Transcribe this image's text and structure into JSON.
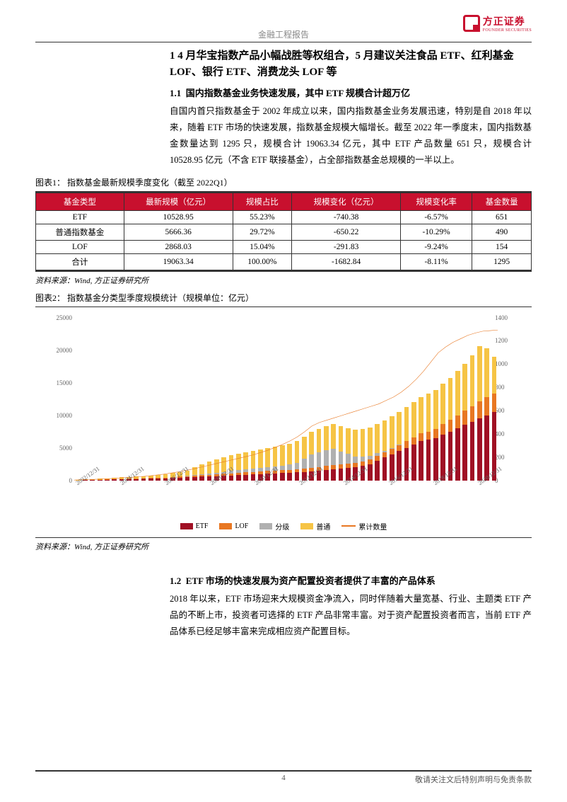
{
  "header": {
    "doc_type": "金融工程报告"
  },
  "logo": {
    "cn": "方正证券",
    "en": "FOUNDER SECURITIES"
  },
  "section1": {
    "num": "1",
    "title": "4 月华宝指数产品小幅战胜等权组合，5 月建议关注食品 ETF、红利基金 LOF、银行 ETF、消费龙头 LOF 等",
    "sub_num": "1.1",
    "sub_title": "国内指数基金业务快速发展，其中 ETF 规模合计超万亿",
    "para1": "自国内首只指数基金于 2002 年成立以来，国内指数基金业务发展迅速，特别是自 2018 年以来，随着 ETF 市场的快速发展，指数基金规模大幅增长。截至 2022 年一季度末，国内指数基金数量达到 1295 只，规模合计 19063.34 亿元，其中 ETF 产品数量 651 只，规模合计 10528.95 亿元（不含 ETF 联接基金），占全部指数基金总规模的一半以上。"
  },
  "table1": {
    "caption": "图表1：  指数基金最新规模季度变化（截至 2022Q1）",
    "columns": [
      "基金类型",
      "最新规模（亿元）",
      "规模占比",
      "规模变化（亿元）",
      "规模变化率",
      "基金数量"
    ],
    "rows": [
      [
        "ETF",
        "10528.95",
        "55.23%",
        "-740.38",
        "-6.57%",
        "651"
      ],
      [
        "普通指数基金",
        "5666.36",
        "29.72%",
        "-650.22",
        "-10.29%",
        "490"
      ],
      [
        "LOF",
        "2868.03",
        "15.04%",
        "-291.83",
        "-9.24%",
        "154"
      ],
      [
        "合计",
        "19063.34",
        "100.00%",
        "-1682.84",
        "-8.11%",
        "1295"
      ]
    ],
    "source": "资料来源：Wind, 方正证券研究所"
  },
  "chart2": {
    "caption": "图表2：  指数基金分类型季度规模统计（规模单位：亿元）",
    "type": "stacked-bar-with-line",
    "y_left": {
      "min": 0,
      "max": 25000,
      "step": 5000,
      "ticks": [
        0,
        5000,
        10000,
        15000,
        20000,
        25000
      ]
    },
    "y_right": {
      "min": 0,
      "max": 1400,
      "step": 200,
      "ticks": [
        0,
        200,
        400,
        600,
        800,
        1000,
        1200,
        1400
      ]
    },
    "x_labels": [
      "2002/12/31",
      "2004/12/31",
      "2006/12/31",
      "2008/12/31",
      "2010/12/31",
      "2012/12/31",
      "2014/12/31",
      "2016/12/31",
      "2018/12/31",
      "2020/12/31"
    ],
    "colors": {
      "etf": "#a01024",
      "lof": "#e87722",
      "fenji": "#b0b0b0",
      "putong": "#f6c445",
      "line": "#e87722",
      "grid": "#ffffff",
      "axis": "#808080"
    },
    "legend": [
      {
        "label": "ETF",
        "color": "#a01024",
        "type": "box"
      },
      {
        "label": "LOF",
        "color": "#e87722",
        "type": "box"
      },
      {
        "label": "分级",
        "color": "#b0b0b0",
        "type": "box"
      },
      {
        "label": "普通",
        "color": "#f6c445",
        "type": "box"
      },
      {
        "label": "累计数量",
        "color": "#e87722",
        "type": "line"
      }
    ],
    "bars": [
      {
        "etf": 0,
        "lof": 0,
        "fenji": 0,
        "putong": 50
      },
      {
        "etf": 50,
        "lof": 0,
        "fenji": 0,
        "putong": 80
      },
      {
        "etf": 80,
        "lof": 0,
        "fenji": 0,
        "putong": 100
      },
      {
        "etf": 100,
        "lof": 0,
        "fenji": 0,
        "putong": 150
      },
      {
        "etf": 100,
        "lof": 20,
        "fenji": 0,
        "putong": 180
      },
      {
        "etf": 120,
        "lof": 30,
        "fenji": 0,
        "putong": 200
      },
      {
        "etf": 150,
        "lof": 40,
        "fenji": 0,
        "putong": 250
      },
      {
        "etf": 180,
        "lof": 50,
        "fenji": 0,
        "putong": 280
      },
      {
        "etf": 200,
        "lof": 60,
        "fenji": 0,
        "putong": 300
      },
      {
        "etf": 220,
        "lof": 70,
        "fenji": 0,
        "putong": 320
      },
      {
        "etf": 250,
        "lof": 80,
        "fenji": 0,
        "putong": 350
      },
      {
        "etf": 280,
        "lof": 90,
        "fenji": 0,
        "putong": 400
      },
      {
        "etf": 300,
        "lof": 100,
        "fenji": 20,
        "putong": 500
      },
      {
        "etf": 350,
        "lof": 120,
        "fenji": 30,
        "putong": 600
      },
      {
        "etf": 400,
        "lof": 150,
        "fenji": 50,
        "putong": 700
      },
      {
        "etf": 450,
        "lof": 180,
        "fenji": 80,
        "putong": 800
      },
      {
        "etf": 500,
        "lof": 200,
        "fenji": 100,
        "putong": 1200
      },
      {
        "etf": 550,
        "lof": 220,
        "fenji": 150,
        "putong": 1500
      },
      {
        "etf": 600,
        "lof": 250,
        "fenji": 200,
        "putong": 1800
      },
      {
        "etf": 650,
        "lof": 280,
        "fenji": 250,
        "putong": 2000
      },
      {
        "etf": 700,
        "lof": 300,
        "fenji": 300,
        "putong": 2200
      },
      {
        "etf": 750,
        "lof": 320,
        "fenji": 350,
        "putong": 2400
      },
      {
        "etf": 800,
        "lof": 340,
        "fenji": 400,
        "putong": 2500
      },
      {
        "etf": 850,
        "lof": 360,
        "fenji": 450,
        "putong": 2600
      },
      {
        "etf": 900,
        "lof": 380,
        "fenji": 500,
        "putong": 2700
      },
      {
        "etf": 950,
        "lof": 400,
        "fenji": 550,
        "putong": 2800
      },
      {
        "etf": 1000,
        "lof": 420,
        "fenji": 600,
        "putong": 2900
      },
      {
        "etf": 1050,
        "lof": 440,
        "fenji": 650,
        "putong": 3000
      },
      {
        "etf": 1100,
        "lof": 460,
        "fenji": 700,
        "putong": 3100
      },
      {
        "etf": 1150,
        "lof": 480,
        "fenji": 800,
        "putong": 3200
      },
      {
        "etf": 1200,
        "lof": 500,
        "fenji": 1000,
        "putong": 3300
      },
      {
        "etf": 1300,
        "lof": 520,
        "fenji": 1500,
        "putong": 3400
      },
      {
        "etf": 1400,
        "lof": 540,
        "fenji": 2000,
        "putong": 3500
      },
      {
        "etf": 1500,
        "lof": 560,
        "fenji": 2200,
        "putong": 3600
      },
      {
        "etf": 1600,
        "lof": 580,
        "fenji": 2400,
        "putong": 3700
      },
      {
        "etf": 1700,
        "lof": 600,
        "fenji": 2500,
        "putong": 3800
      },
      {
        "etf": 1800,
        "lof": 620,
        "fenji": 2000,
        "putong": 3900
      },
      {
        "etf": 1900,
        "lof": 640,
        "fenji": 1500,
        "putong": 4000
      },
      {
        "etf": 2000,
        "lof": 660,
        "fenji": 1000,
        "putong": 4100
      },
      {
        "etf": 2200,
        "lof": 680,
        "fenji": 800,
        "putong": 4200
      },
      {
        "etf": 2500,
        "lof": 700,
        "fenji": 600,
        "putong": 4300
      },
      {
        "etf": 3000,
        "lof": 750,
        "fenji": 400,
        "putong": 4500
      },
      {
        "etf": 3500,
        "lof": 800,
        "fenji": 200,
        "putong": 4700
      },
      {
        "etf": 4000,
        "lof": 850,
        "fenji": 100,
        "putong": 4900
      },
      {
        "etf": 4500,
        "lof": 900,
        "fenji": 50,
        "putong": 5000
      },
      {
        "etf": 5000,
        "lof": 1000,
        "fenji": 0,
        "putong": 5200
      },
      {
        "etf": 5500,
        "lof": 1100,
        "fenji": 0,
        "putong": 5400
      },
      {
        "etf": 6000,
        "lof": 1200,
        "fenji": 0,
        "putong": 5600
      },
      {
        "etf": 6200,
        "lof": 1300,
        "fenji": 0,
        "putong": 5800
      },
      {
        "etf": 6500,
        "lof": 1400,
        "fenji": 0,
        "putong": 6000
      },
      {
        "etf": 7000,
        "lof": 1600,
        "fenji": 0,
        "putong": 6200
      },
      {
        "etf": 7500,
        "lof": 1800,
        "fenji": 0,
        "putong": 6400
      },
      {
        "etf": 8000,
        "lof": 2000,
        "fenji": 0,
        "putong": 6800
      },
      {
        "etf": 8500,
        "lof": 2200,
        "fenji": 0,
        "putong": 7200
      },
      {
        "etf": 9000,
        "lof": 2400,
        "fenji": 0,
        "putong": 7800
      },
      {
        "etf": 9500,
        "lof": 2600,
        "fenji": 0,
        "putong": 8500
      },
      {
        "etf": 10000,
        "lof": 2800,
        "fenji": 0,
        "putong": 7500
      },
      {
        "etf": 10500,
        "lof": 2850,
        "fenji": 0,
        "putong": 5666
      }
    ],
    "line": [
      5,
      8,
      10,
      12,
      15,
      18,
      22,
      26,
      30,
      35,
      40,
      48,
      55,
      65,
      75,
      88,
      100,
      115,
      130,
      145,
      160,
      175,
      190,
      205,
      220,
      240,
      260,
      285,
      310,
      340,
      375,
      420,
      470,
      500,
      520,
      540,
      560,
      580,
      600,
      620,
      640,
      660,
      690,
      720,
      760,
      810,
      870,
      940,
      1020,
      1100,
      1150,
      1190,
      1220,
      1250,
      1270,
      1285,
      1290,
      1295
    ],
    "source": "资料来源：Wind, 方正证券研究所"
  },
  "section12": {
    "sub_num": "1.2",
    "sub_title": "ETF 市场的快速发展为资产配置投资者提供了丰富的产品体系",
    "para": "2018 年以来，ETF 市场迎来大规模资金净流入，同时伴随着大量宽基、行业、主题类 ETF 产品的不断上市，投资者可选择的 ETF 产品非常丰富。对于资产配置投资者而言，当前 ETF 产品体系已经足够丰富来完成相应资产配置目标。"
  },
  "footer": {
    "page_num": "4",
    "disclaimer": "敬请关注文后特别声明与免责条款"
  }
}
